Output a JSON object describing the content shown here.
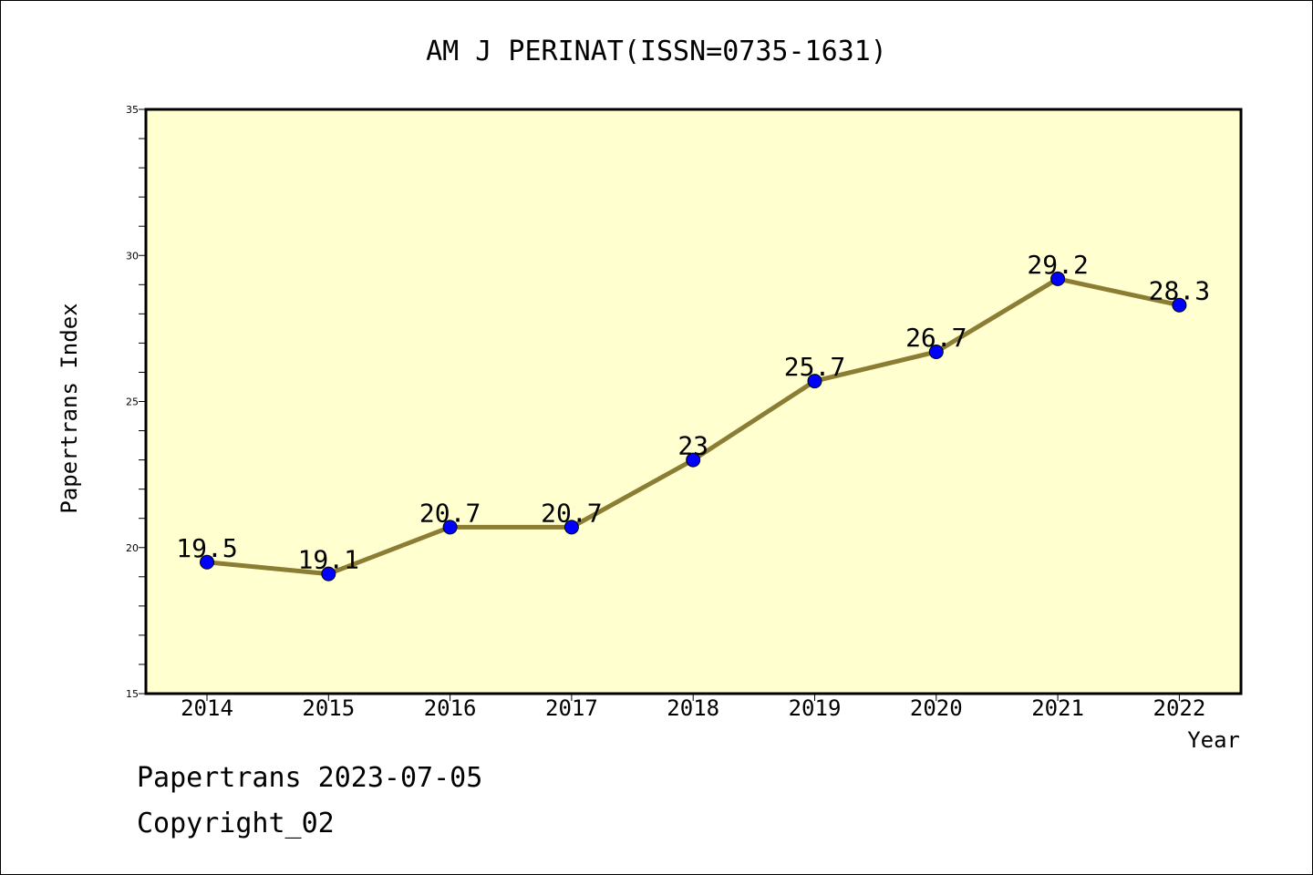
{
  "chart_data": {
    "type": "line",
    "title": "AM J PERINAT(ISSN=0735-1631)",
    "xlabel": "Year",
    "ylabel": "Papertrans Index",
    "categories": [
      "2014",
      "2015",
      "2016",
      "2017",
      "2018",
      "2019",
      "2020",
      "2021",
      "2022"
    ],
    "values": [
      19.5,
      19.1,
      20.7,
      20.7,
      23,
      25.7,
      26.7,
      29.2,
      28.3
    ],
    "data_labels": [
      "19.5",
      "19.1",
      "20.7",
      "20.7",
      "23",
      "25.7",
      "26.7",
      "29.2",
      "28.3"
    ],
    "ylim": [
      15,
      35
    ],
    "yticks": [
      15,
      20,
      25,
      30,
      35
    ],
    "grid": false,
    "colors": {
      "plot_background": "#ffffd0",
      "line": "#8b7d33",
      "marker": "#0000ff"
    }
  },
  "footer": {
    "line1": "Papertrans 2023-07-05",
    "line2": "Copyright_02"
  }
}
